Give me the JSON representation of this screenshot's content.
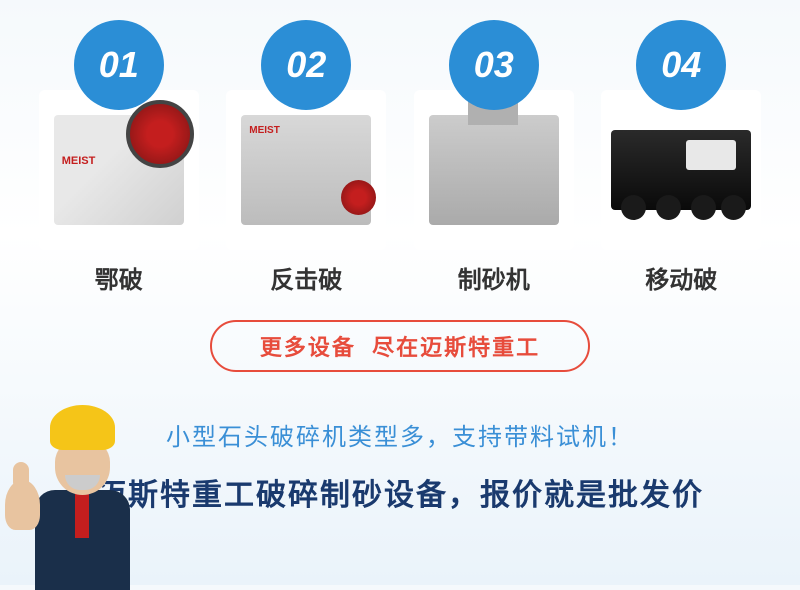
{
  "products": [
    {
      "num": "01",
      "name": "鄂破"
    },
    {
      "num": "02",
      "name": "反击破"
    },
    {
      "num": "03",
      "name": "制砂机"
    },
    {
      "num": "04",
      "name": "移动破"
    }
  ],
  "circle_color": "#2b8ed6",
  "more_banner": {
    "text_left": "更多设备",
    "text_right": "尽在迈斯特重工",
    "color": "#e74c3c",
    "border_color": "#e74c3c"
  },
  "subtitle": {
    "text": "小型石头破碎机类型多，支持带料试机！",
    "color": "#3a8fd6"
  },
  "headline": {
    "text": "迈斯特重工破碎制砂设备，报价就是批发价",
    "color": "#1a3a6e"
  }
}
